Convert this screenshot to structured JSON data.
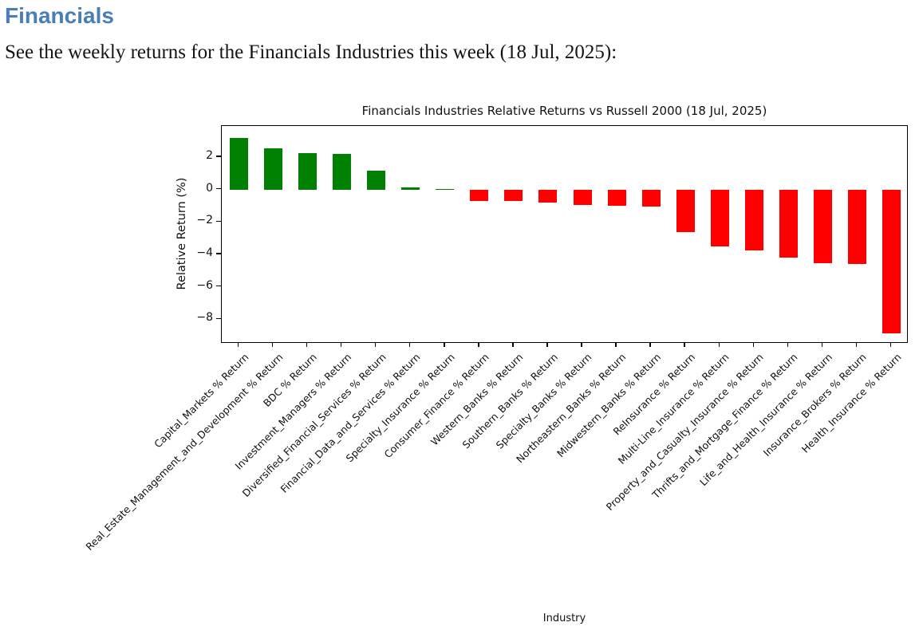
{
  "page": {
    "heading": "Financials",
    "description": "See the weekly returns for the Financials Industries this week (18 Jul, 2025):",
    "heading_color": "#4a7ebb"
  },
  "chart_data": {
    "type": "bar",
    "title": "Financials Industries Relative Returns vs Russell 2000 (18 Jul, 2025)",
    "xlabel": "Industry",
    "ylabel": "Relative Return (%)",
    "ylim": [
      -9.5,
      3.92
    ],
    "yticks": [
      2,
      0,
      -2,
      -4,
      -6,
      -8
    ],
    "grid": false,
    "legend": "none",
    "positive_color": "#008000",
    "negative_color": "#ff0000",
    "categories": [
      "Capital_Markets % Return",
      "Real_Estate_Management_and_Development % Return",
      "BDC % Return",
      "Investment_Managers % Return",
      "Diversified_Financial_Services % Return",
      "Financial_Data_and_Services % Return",
      "Specialty_Insurance % Return",
      "Consumer_Finance % Return",
      "Western_Banks % Return",
      "Southern_Banks % Return",
      "Specialty_Banks % Return",
      "Northeastern_Banks % Return",
      "Midwestern_Banks % Return",
      "ReInsurance % Return",
      "Multi-Line_Insurance % Return",
      "Property_and_Casualty_Insurance % Return",
      "Thrifts_and_Mortgage_Finance % Return",
      "Life_and_Health_Insurance % Return",
      "Insurance_Brokers % Return",
      "Health_Insurance % Return"
    ],
    "values": [
      3.2,
      2.55,
      2.25,
      2.2,
      1.15,
      0.12,
      0.06,
      -0.7,
      -0.7,
      -0.8,
      -0.95,
      -1.0,
      -1.05,
      -2.6,
      -3.5,
      -3.75,
      -4.2,
      -4.55,
      -4.6,
      -8.85
    ]
  }
}
